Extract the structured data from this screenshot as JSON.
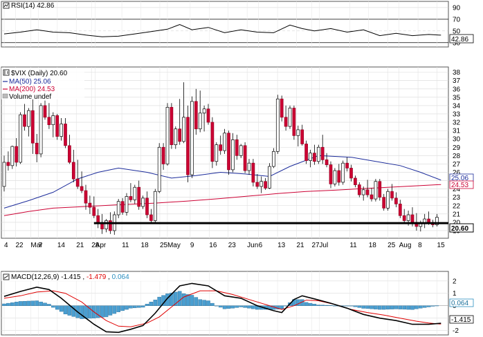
{
  "chart_data": {
    "type": "candlestick",
    "symbol_label": "$VIX (Daily) 20.60",
    "last_close": 20.6,
    "x_ticks": [
      "4",
      "22",
      "Mar",
      "7",
      "14",
      "21",
      "28",
      "Apr",
      "11",
      "18",
      "25",
      "May",
      "9",
      "16",
      "23",
      "Jun",
      "6",
      "13",
      "21",
      "27",
      "Jul",
      "11",
      "18",
      "25",
      "Aug",
      "8",
      "15"
    ],
    "price_y_ticks": [
      19,
      20,
      21,
      22,
      23,
      24,
      25,
      26,
      27,
      28,
      29,
      30,
      31,
      32,
      33,
      34,
      35,
      36,
      37,
      38
    ],
    "price_ylim": [
      18.5,
      38.3
    ],
    "support_line": 19.9,
    "legend": {
      "ma50": "MA(50) 25.06",
      "ma200": "MA(200) 24.53",
      "volume": "Volume undef"
    },
    "right_labels": {
      "ma50": "25.06",
      "ma200": "24.53",
      "close": "20.60"
    },
    "series": {
      "ohlc": [
        [
          24.3,
          28.0,
          23.7,
          27.2
        ],
        [
          27.2,
          28.5,
          26.2,
          26.8
        ],
        [
          26.8,
          29.2,
          26.4,
          29.1
        ],
        [
          29.1,
          30.1,
          26.7,
          27.2
        ],
        [
          27.2,
          33.2,
          27.0,
          32.9
        ],
        [
          32.9,
          34.2,
          31.0,
          31.5
        ],
        [
          31.5,
          33.7,
          30.3,
          33.4
        ],
        [
          33.4,
          34.8,
          28.2,
          29.5
        ],
        [
          29.5,
          30.6,
          27.2,
          28.2
        ],
        [
          28.2,
          34.3,
          27.8,
          34.0
        ],
        [
          34.0,
          34.6,
          32.3,
          32.6
        ],
        [
          32.6,
          34.3,
          31.2,
          31.7
        ],
        [
          31.7,
          33.2,
          30.2,
          32.8
        ],
        [
          32.8,
          33.0,
          29.9,
          30.3
        ],
        [
          30.3,
          32.5,
          29.8,
          31.8
        ],
        [
          31.8,
          32.5,
          28.9,
          29.2
        ],
        [
          29.2,
          30.5,
          27.0,
          27.2
        ],
        [
          27.2,
          28.7,
          24.8,
          25.2
        ],
        [
          25.2,
          27.5,
          24.0,
          24.3
        ],
        [
          24.3,
          26.1,
          23.5,
          23.8
        ],
        [
          23.8,
          24.5,
          21.5,
          22.3
        ],
        [
          22.3,
          23.2,
          21.0,
          21.8
        ],
        [
          21.8,
          23.1,
          20.5,
          20.8
        ],
        [
          20.8,
          21.6,
          19.3,
          19.9
        ],
        [
          19.9,
          21.0,
          18.6,
          19.2
        ],
        [
          19.2,
          20.4,
          18.8,
          20.2
        ],
        [
          20.2,
          21.2,
          18.6,
          19.0
        ],
        [
          19.0,
          21.3,
          18.5,
          20.9
        ],
        [
          20.9,
          22.8,
          20.5,
          22.5
        ],
        [
          22.5,
          22.9,
          20.9,
          21.2
        ],
        [
          21.2,
          23.5,
          20.8,
          23.1
        ],
        [
          23.1,
          24.7,
          22.4,
          22.7
        ],
        [
          22.7,
          24.5,
          22.2,
          24.2
        ],
        [
          24.2,
          25.0,
          21.5,
          21.9
        ],
        [
          21.9,
          23.2,
          21.6,
          22.9
        ],
        [
          22.9,
          23.7,
          20.5,
          20.9
        ],
        [
          20.9,
          21.6,
          19.9,
          20.2
        ],
        [
          20.2,
          24.0,
          19.9,
          23.7
        ],
        [
          23.7,
          29.5,
          23.5,
          29.0
        ],
        [
          29.0,
          29.5,
          26.3,
          27.0
        ],
        [
          27.0,
          34.3,
          26.8,
          33.8
        ],
        [
          33.8,
          34.3,
          28.8,
          29.3
        ],
        [
          29.3,
          31.5,
          28.8,
          31.2
        ],
        [
          31.2,
          34.8,
          29.3,
          29.7
        ],
        [
          29.7,
          36.8,
          29.5,
          32.6
        ],
        [
          32.6,
          34.0,
          24.8,
          25.7
        ],
        [
          25.7,
          35.1,
          25.3,
          34.5
        ],
        [
          34.5,
          36.0,
          30.5,
          31.2
        ],
        [
          31.2,
          35.8,
          30.8,
          33.1
        ],
        [
          33.1,
          34.0,
          30.9,
          33.6
        ],
        [
          33.6,
          34.2,
          31.7,
          32.0
        ],
        [
          32.0,
          32.6,
          26.5,
          27.3
        ],
        [
          27.3,
          29.6,
          26.8,
          29.3
        ],
        [
          29.3,
          30.4,
          28.1,
          28.6
        ],
        [
          28.6,
          31.2,
          28.2,
          30.7
        ],
        [
          30.7,
          31.0,
          25.7,
          26.3
        ],
        [
          26.3,
          30.7,
          26.0,
          29.9
        ],
        [
          29.9,
          30.5,
          27.5,
          28.0
        ],
        [
          28.0,
          29.4,
          27.7,
          29.2
        ],
        [
          29.2,
          29.6,
          25.9,
          26.2
        ],
        [
          26.2,
          27.6,
          25.7,
          27.1
        ],
        [
          27.1,
          27.6,
          24.3,
          24.8
        ],
        [
          24.8,
          25.8,
          24.0,
          24.3
        ],
        [
          24.3,
          25.5,
          23.5,
          24.9
        ],
        [
          24.9,
          25.3,
          23.9,
          24.1
        ],
        [
          24.1,
          27.1,
          24.0,
          26.7
        ],
        [
          26.7,
          28.9,
          26.5,
          28.5
        ],
        [
          28.5,
          35.3,
          28.2,
          34.8
        ],
        [
          34.8,
          35.2,
          32.1,
          32.6
        ],
        [
          32.6,
          34.0,
          31.0,
          31.5
        ],
        [
          31.5,
          34.0,
          31.2,
          33.7
        ],
        [
          33.7,
          34.0,
          29.9,
          30.4
        ],
        [
          30.4,
          31.6,
          29.1,
          31.1
        ],
        [
          31.1,
          31.7,
          29.2,
          29.4
        ],
        [
          29.4,
          29.8,
          27.0,
          27.4
        ],
        [
          27.4,
          28.7,
          26.6,
          28.3
        ],
        [
          28.3,
          29.3,
          26.9,
          27.3
        ],
        [
          27.3,
          29.3,
          27.0,
          29.0
        ],
        [
          29.0,
          30.5,
          27.0,
          27.5
        ],
        [
          27.5,
          28.3,
          26.6,
          26.9
        ],
        [
          26.9,
          27.3,
          24.1,
          24.6
        ],
        [
          24.6,
          26.5,
          24.3,
          26.2
        ],
        [
          26.2,
          27.0,
          24.4,
          24.8
        ],
        [
          24.8,
          27.4,
          24.5,
          27.1
        ],
        [
          27.1,
          27.8,
          26.1,
          26.5
        ],
        [
          26.5,
          26.9,
          24.9,
          25.3
        ],
        [
          25.3,
          25.6,
          24.2,
          24.5
        ],
        [
          24.5,
          24.8,
          23.0,
          23.3
        ],
        [
          23.3,
          24.3,
          22.6,
          23.9
        ],
        [
          23.9,
          25.1,
          23.0,
          23.3
        ],
        [
          23.3,
          24.1,
          22.5,
          22.8
        ],
        [
          22.8,
          25.2,
          22.5,
          24.9
        ],
        [
          24.9,
          25.2,
          22.6,
          23.0
        ],
        [
          23.0,
          23.4,
          21.4,
          21.7
        ],
        [
          21.7,
          24.0,
          21.4,
          23.7
        ],
        [
          23.7,
          24.6,
          22.6,
          22.9
        ],
        [
          22.9,
          23.6,
          21.8,
          22.2
        ],
        [
          22.2,
          22.7,
          20.5,
          20.8
        ],
        [
          20.8,
          21.6,
          19.8,
          20.2
        ],
        [
          20.2,
          21.4,
          19.6,
          20.9
        ],
        [
          20.9,
          21.8,
          19.5,
          20.0
        ],
        [
          20.0,
          21.1,
          19.0,
          19.5
        ],
        [
          19.5,
          20.2,
          18.9,
          19.9
        ],
        [
          19.9,
          21.0,
          19.3,
          20.4
        ],
        [
          20.4,
          21.3,
          19.7,
          20.0
        ],
        [
          20.0,
          20.3,
          19.4,
          19.7
        ],
        [
          19.7,
          21.0,
          19.5,
          20.6
        ]
      ],
      "ma50": [
        [
          0,
          21.7
        ],
        [
          6,
          22.6
        ],
        [
          12,
          23.6
        ],
        [
          18,
          25.2
        ],
        [
          23,
          26.0
        ],
        [
          28,
          26.5
        ],
        [
          35,
          26.0
        ],
        [
          41,
          25.3
        ],
        [
          47,
          25.6
        ],
        [
          53,
          26.0
        ],
        [
          59,
          25.8
        ],
        [
          65,
          25.5
        ],
        [
          70,
          26.7
        ],
        [
          77,
          28.0
        ],
        [
          85,
          27.8
        ],
        [
          91,
          27.3
        ],
        [
          97,
          26.8
        ],
        [
          102,
          26.0
        ],
        [
          107,
          25.06
        ]
      ],
      "ma200": [
        [
          0,
          20.8
        ],
        [
          6,
          21.3
        ],
        [
          12,
          21.7
        ],
        [
          20,
          21.9
        ],
        [
          28,
          22.1
        ],
        [
          37,
          22.3
        ],
        [
          45,
          22.55
        ],
        [
          53,
          22.85
        ],
        [
          60,
          23.15
        ],
        [
          67,
          23.45
        ],
        [
          74,
          23.7
        ],
        [
          81,
          23.85
        ],
        [
          88,
          24.05
        ],
        [
          96,
          24.25
        ],
        [
          102,
          24.4
        ],
        [
          107,
          24.53
        ]
      ]
    },
    "rsi": {
      "label": "RSI(14) 42.86",
      "y_ticks": [
        30,
        50,
        70,
        90
      ],
      "ylim": [
        25,
        97
      ],
      "value_label": "42.86",
      "values": [
        [
          0,
          45
        ],
        [
          4,
          48
        ],
        [
          8,
          52
        ],
        [
          12,
          48
        ],
        [
          16,
          47
        ],
        [
          20,
          43
        ],
        [
          24,
          40
        ],
        [
          28,
          41
        ],
        [
          32,
          45
        ],
        [
          36,
          49
        ],
        [
          40,
          53
        ],
        [
          43,
          61
        ],
        [
          46,
          52
        ],
        [
          50,
          56
        ],
        [
          54,
          47
        ],
        [
          58,
          52
        ],
        [
          62,
          48
        ],
        [
          66,
          47
        ],
        [
          70,
          60
        ],
        [
          73,
          54
        ],
        [
          76,
          50
        ],
        [
          80,
          54
        ],
        [
          84,
          48
        ],
        [
          88,
          52
        ],
        [
          92,
          42
        ],
        [
          96,
          46
        ],
        [
          100,
          42
        ],
        [
          104,
          44
        ],
        [
          107,
          42.86
        ]
      ]
    },
    "macd": {
      "label_prefix": "MACD(12,26,9)",
      "macd_value": "-1.415",
      "signal_value": "-1.479",
      "hist_value": "0.064",
      "y_ticks": [
        -2,
        -1,
        0,
        1,
        2
      ],
      "ylim": [
        -2.3,
        2.6
      ],
      "right_labels": {
        "hist": "0.064",
        "macd": "-1.415"
      },
      "macd_line": [
        [
          0,
          0.75
        ],
        [
          4,
          1.15
        ],
        [
          8,
          1.5
        ],
        [
          11,
          1.3
        ],
        [
          14,
          0.6
        ],
        [
          18,
          -0.5
        ],
        [
          22,
          -1.5
        ],
        [
          25,
          -2.1
        ],
        [
          28,
          -2.15
        ],
        [
          31,
          -1.9
        ],
        [
          34,
          -1.6
        ],
        [
          37,
          -0.6
        ],
        [
          40,
          0.6
        ],
        [
          43,
          1.6
        ],
        [
          46,
          1.8
        ],
        [
          50,
          1.6
        ],
        [
          54,
          0.8
        ],
        [
          58,
          0.6
        ],
        [
          62,
          0.0
        ],
        [
          66,
          -0.4
        ],
        [
          68,
          -0.55
        ],
        [
          71,
          0.5
        ],
        [
          73,
          0.8
        ],
        [
          76,
          0.55
        ],
        [
          80,
          0.2
        ],
        [
          84,
          -0.2
        ],
        [
          88,
          -0.7
        ],
        [
          92,
          -1.0
        ],
        [
          96,
          -1.2
        ],
        [
          100,
          -1.5
        ],
        [
          104,
          -1.5
        ],
        [
          107,
          -1.415
        ]
      ],
      "signal_line": [
        [
          0,
          0.6
        ],
        [
          4,
          0.8
        ],
        [
          8,
          1.1
        ],
        [
          12,
          1.2
        ],
        [
          15,
          1.0
        ],
        [
          19,
          0.3
        ],
        [
          22,
          -0.5
        ],
        [
          25,
          -1.2
        ],
        [
          28,
          -1.65
        ],
        [
          31,
          -1.7
        ],
        [
          35,
          -1.4
        ],
        [
          38,
          -0.9
        ],
        [
          41,
          -0.1
        ],
        [
          44,
          0.7
        ],
        [
          48,
          1.2
        ],
        [
          52,
          1.2
        ],
        [
          56,
          0.9
        ],
        [
          60,
          0.5
        ],
        [
          64,
          0.1
        ],
        [
          68,
          -0.3
        ],
        [
          71,
          0.0
        ],
        [
          74,
          0.45
        ],
        [
          77,
          0.4
        ],
        [
          81,
          0.1
        ],
        [
          85,
          -0.3
        ],
        [
          89,
          -0.55
        ],
        [
          93,
          -0.75
        ],
        [
          97,
          -1.0
        ],
        [
          101,
          -1.25
        ],
        [
          104,
          -1.4
        ],
        [
          107,
          -1.479
        ]
      ]
    }
  }
}
